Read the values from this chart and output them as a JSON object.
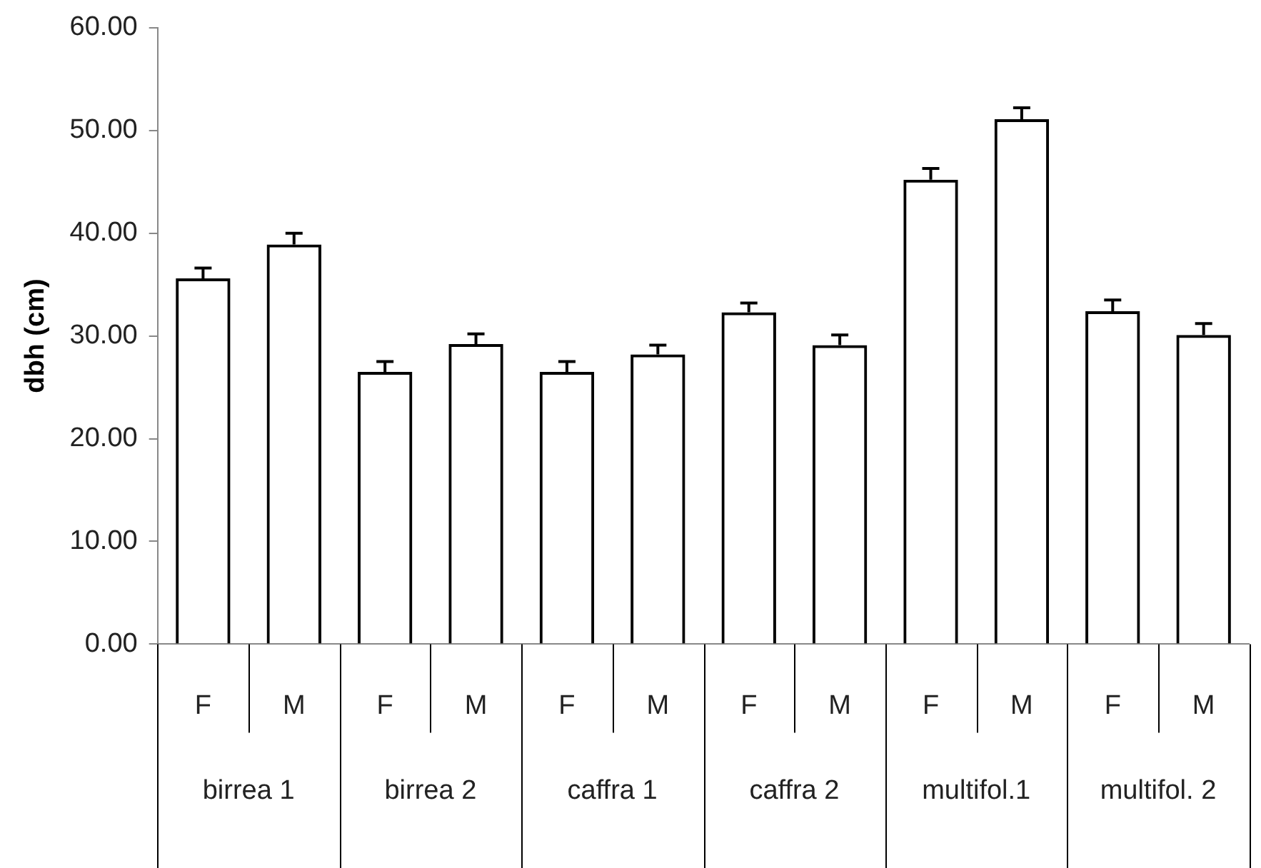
{
  "chart_data": {
    "type": "bar",
    "ylabel": "dbh (cm)",
    "categories": [
      "F",
      "M",
      "F",
      "M",
      "F",
      "M",
      "F",
      "M",
      "F",
      "M",
      "F",
      "M"
    ],
    "values": [
      35.6,
      38.9,
      26.5,
      29.2,
      26.5,
      28.2,
      32.3,
      29.1,
      45.2,
      51.1,
      32.4,
      30.1
    ],
    "errors": [
      1.0,
      1.1,
      1.0,
      1.0,
      1.0,
      0.9,
      0.9,
      1.0,
      1.1,
      1.1,
      1.1,
      1.1
    ],
    "color": "#000000",
    "ylim": [
      0,
      60
    ],
    "yticks": [
      {
        "value": 0,
        "label": "0.00"
      },
      {
        "value": 10,
        "label": "10.00"
      },
      {
        "value": 20,
        "label": "20.00"
      },
      {
        "value": 30,
        "label": "30.00"
      },
      {
        "value": 40,
        "label": "40.00"
      },
      {
        "value": 50,
        "label": "50.00"
      },
      {
        "value": 60,
        "label": "60.00"
      }
    ],
    "annotations": [
      "birrea 1",
      "birrea 2",
      "caffra 1",
      "caffra 2",
      "multifol.1",
      "multifol. 2"
    ],
    "grid": false,
    "legend": false
  }
}
